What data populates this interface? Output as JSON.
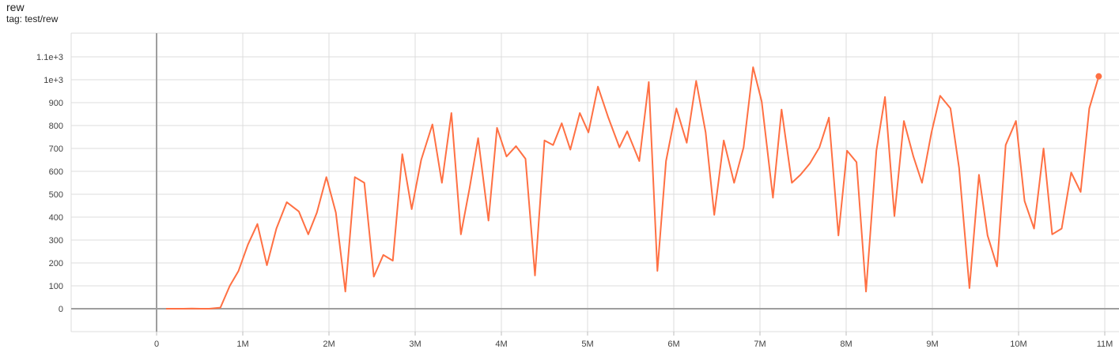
{
  "header": {
    "title": "rew",
    "tag": "tag: test/rew"
  },
  "chart_data": {
    "type": "line",
    "title": "rew",
    "subtitle": "tag: test/rew",
    "xlabel": "",
    "ylabel": "",
    "xlim": [
      -1000000,
      11200000
    ],
    "ylim": [
      -100,
      1160
    ],
    "grid": true,
    "x_ticks": [
      0,
      1000000,
      2000000,
      3000000,
      4000000,
      5000000,
      6000000,
      7000000,
      8000000,
      9000000,
      10000000,
      11000000
    ],
    "x_tick_labels": [
      "0",
      "1M",
      "2M",
      "3M",
      "4M",
      "5M",
      "6M",
      "7M",
      "8M",
      "9M",
      "10M",
      "11M"
    ],
    "y_ticks": [
      0,
      100,
      200,
      300,
      400,
      500,
      600,
      700,
      800,
      900,
      1000,
      1100
    ],
    "y_tick_labels": [
      "0",
      "100",
      "200",
      "300",
      "400",
      "500",
      "600",
      "700",
      "800",
      "900",
      "1e+3",
      "1.1e+3"
    ],
    "color": "#ff7043",
    "series": [
      {
        "points": [
          [
            110000,
            0
          ],
          [
            210000,
            0
          ],
          [
            310000,
            0
          ],
          [
            410000,
            1
          ],
          [
            510000,
            0
          ],
          [
            610000,
            0
          ],
          [
            740000,
            5
          ],
          [
            850000,
            100
          ],
          [
            950000,
            165
          ],
          [
            1060000,
            280
          ],
          [
            1170000,
            370
          ],
          [
            1280000,
            190
          ],
          [
            1390000,
            350
          ],
          [
            1510000,
            465
          ],
          [
            1650000,
            425
          ],
          [
            1760000,
            325
          ],
          [
            1860000,
            420
          ],
          [
            1970000,
            575
          ],
          [
            2080000,
            420
          ],
          [
            2190000,
            75
          ],
          [
            2300000,
            575
          ],
          [
            2410000,
            550
          ],
          [
            2520000,
            140
          ],
          [
            2630000,
            235
          ],
          [
            2740000,
            210
          ],
          [
            2850000,
            675
          ],
          [
            2960000,
            435
          ],
          [
            3070000,
            650
          ],
          [
            3200000,
            805
          ],
          [
            3310000,
            550
          ],
          [
            3420000,
            855
          ],
          [
            3530000,
            325
          ],
          [
            3630000,
            525
          ],
          [
            3730000,
            745
          ],
          [
            3850000,
            385
          ],
          [
            3950000,
            790
          ],
          [
            4060000,
            665
          ],
          [
            4170000,
            710
          ],
          [
            4280000,
            655
          ],
          [
            4390000,
            145
          ],
          [
            4500000,
            735
          ],
          [
            4600000,
            715
          ],
          [
            4700000,
            810
          ],
          [
            4800000,
            695
          ],
          [
            4910000,
            855
          ],
          [
            5010000,
            770
          ],
          [
            5120000,
            970
          ],
          [
            5240000,
            835
          ],
          [
            5370000,
            705
          ],
          [
            5460000,
            775
          ],
          [
            5600000,
            645
          ],
          [
            5710000,
            990
          ],
          [
            5810000,
            165
          ],
          [
            5910000,
            645
          ],
          [
            6030000,
            875
          ],
          [
            6150000,
            725
          ],
          [
            6260000,
            995
          ],
          [
            6370000,
            770
          ],
          [
            6470000,
            410
          ],
          [
            6580000,
            735
          ],
          [
            6700000,
            550
          ],
          [
            6810000,
            705
          ],
          [
            6920000,
            1055
          ],
          [
            7020000,
            905
          ],
          [
            7150000,
            485
          ],
          [
            7250000,
            870
          ],
          [
            7370000,
            550
          ],
          [
            7470000,
            585
          ],
          [
            7580000,
            635
          ],
          [
            7690000,
            705
          ],
          [
            7800000,
            835
          ],
          [
            7910000,
            320
          ],
          [
            8010000,
            690
          ],
          [
            8120000,
            640
          ],
          [
            8230000,
            75
          ],
          [
            8350000,
            690
          ],
          [
            8450000,
            925
          ],
          [
            8560000,
            405
          ],
          [
            8670000,
            820
          ],
          [
            8780000,
            665
          ],
          [
            8880000,
            550
          ],
          [
            8990000,
            770
          ],
          [
            9090000,
            930
          ],
          [
            9210000,
            875
          ],
          [
            9310000,
            615
          ],
          [
            9430000,
            90
          ],
          [
            9540000,
            585
          ],
          [
            9640000,
            320
          ],
          [
            9750000,
            185
          ],
          [
            9850000,
            715
          ],
          [
            9970000,
            820
          ],
          [
            10070000,
            470
          ],
          [
            10180000,
            350
          ],
          [
            10290000,
            700
          ],
          [
            10390000,
            325
          ],
          [
            10500000,
            350
          ],
          [
            10610000,
            595
          ],
          [
            10720000,
            510
          ],
          [
            10820000,
            875
          ],
          [
            10930000,
            1015
          ]
        ]
      }
    ]
  }
}
